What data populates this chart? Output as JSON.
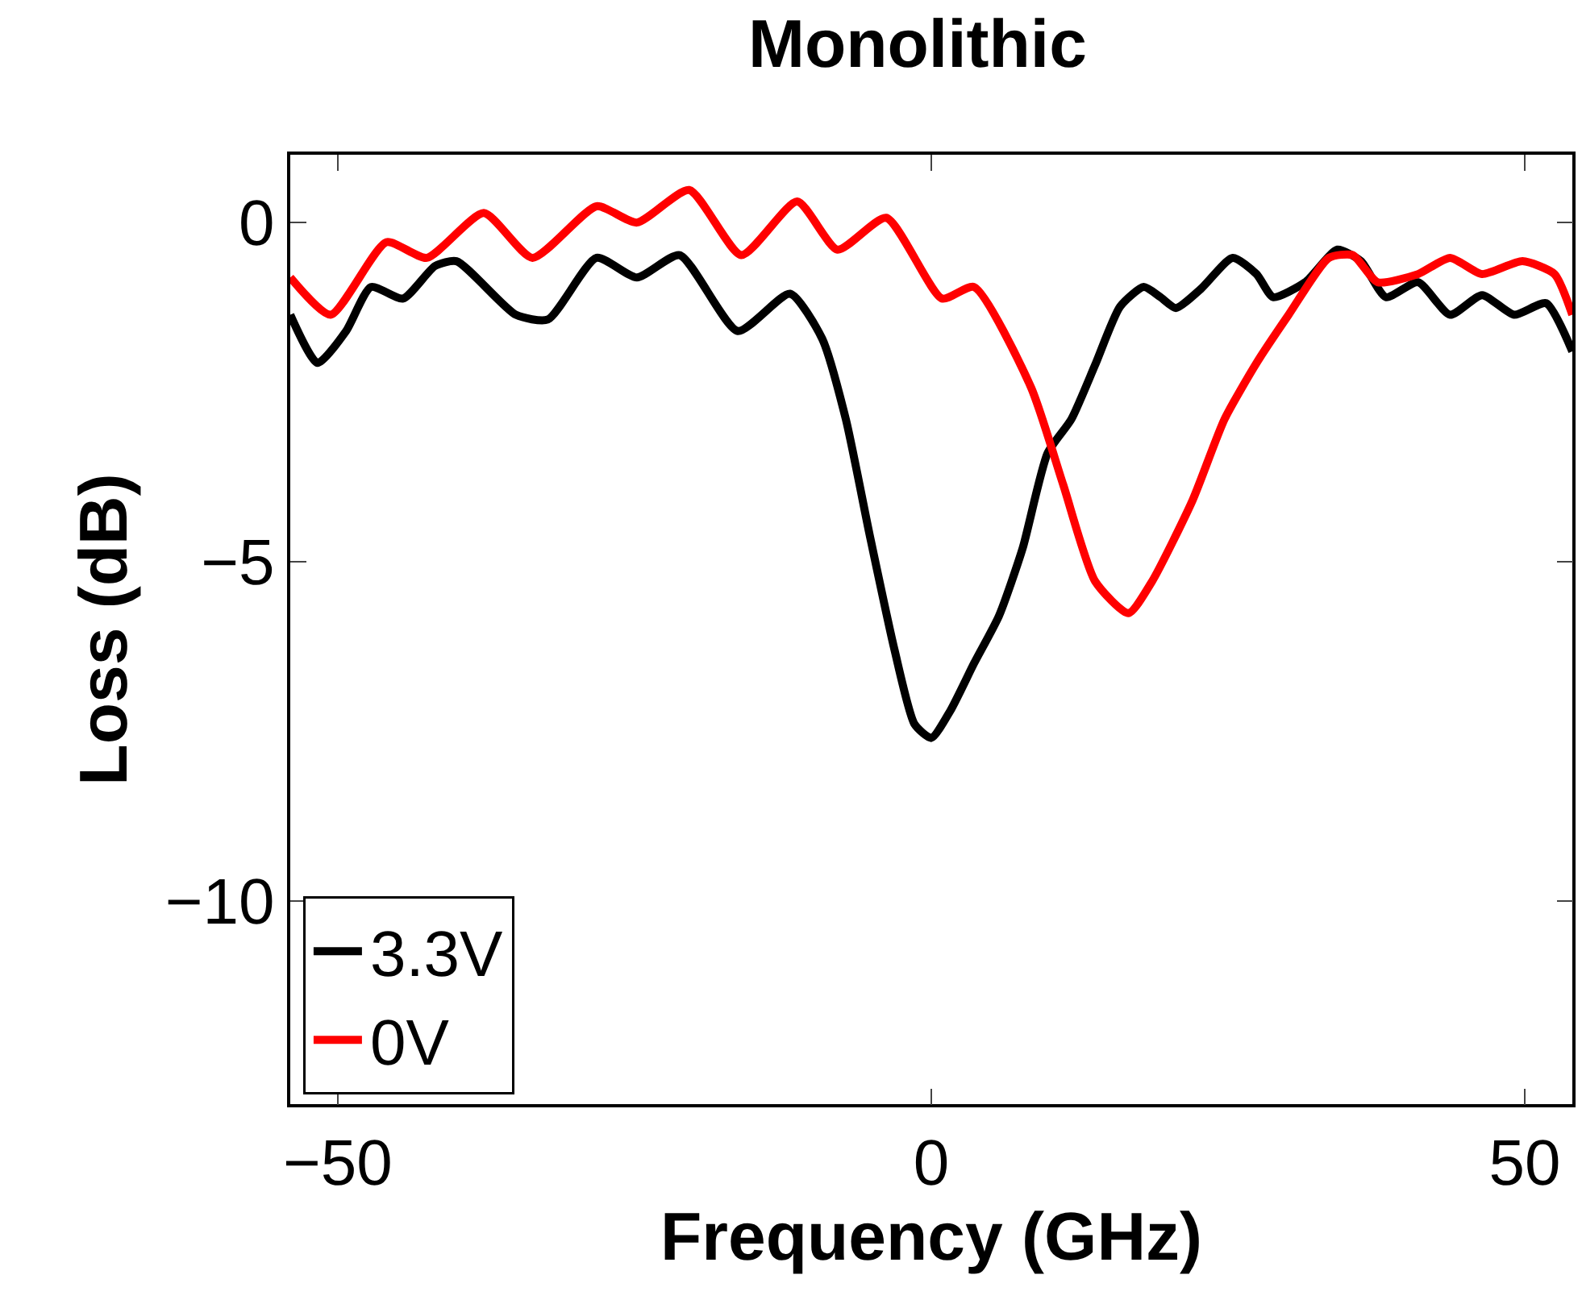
{
  "chart_data": {
    "type": "line",
    "title": "Monolithic",
    "xlabel": "Frequency (GHz)",
    "ylabel": "Loss (dB)",
    "xlim": [
      -54,
      54
    ],
    "xticks": [
      -50,
      0,
      50
    ],
    "ylim": [
      -13,
      1
    ],
    "yticks": [
      -10,
      -5,
      0
    ],
    "grid": false,
    "legend": "bottom left",
    "marker": "none",
    "line_style": "solid",
    "series": [
      {
        "name": "3.3V",
        "color": "#000000",
        "x": [
          -54,
          -51.7,
          -49.3,
          -47.2,
          -44.5,
          -41.8,
          -40,
          -35,
          -32.3,
          -28.2,
          -24.8,
          -21.2,
          -16.3,
          -11.9,
          -9.2,
          -7.2,
          -5.2,
          -3.1,
          -1.4,
          0,
          1.6,
          3.6,
          5.7,
          7.7,
          9.8,
          11.8,
          13.8,
          15.9,
          17.9,
          19.3,
          20.6,
          22.7,
          25.4,
          27.4,
          28.8,
          31.5,
          34.2,
          36.2,
          38.3,
          41,
          43.7,
          46.4,
          49.1,
          51.8,
          54
        ],
        "values": [
          -1.36,
          -2.07,
          -1.6,
          -0.95,
          -1.12,
          -0.64,
          -0.57,
          -1.36,
          -1.43,
          -0.52,
          -0.81,
          -0.48,
          -1.6,
          -1.05,
          -1.71,
          -2.9,
          -4.6,
          -6.3,
          -7.4,
          -7.6,
          -7.2,
          -6.5,
          -5.8,
          -4.8,
          -3.4,
          -2.9,
          -2.1,
          -1.24,
          -0.95,
          -1.1,
          -1.26,
          -0.98,
          -0.52,
          -0.76,
          -1.1,
          -0.88,
          -0.4,
          -0.57,
          -1.1,
          -0.88,
          -1.36,
          -1.07,
          -1.36,
          -1.19,
          -1.9
        ]
      },
      {
        "name": "0V",
        "color": "#ff0000",
        "x": [
          -54,
          -50.6,
          -45.9,
          -42.5,
          -37.7,
          -33.6,
          -28.2,
          -24.8,
          -20.4,
          -16,
          -11.3,
          -7.9,
          -3.8,
          0.9,
          3.6,
          8.4,
          11.1,
          13.8,
          16.6,
          18.6,
          22,
          24.7,
          27.4,
          30.1,
          33.5,
          35.5,
          37.6,
          41,
          43.7,
          46.4,
          49.8,
          52.5,
          54
        ],
        "values": [
          -0.81,
          -1.36,
          -0.29,
          -0.52,
          0.14,
          -0.52,
          0.24,
          0,
          0.48,
          -0.48,
          0.31,
          -0.4,
          0.07,
          -1.12,
          -0.95,
          -2.43,
          -3.86,
          -5.29,
          -5.76,
          -5.29,
          -4.1,
          -2.9,
          -2.07,
          -1.36,
          -0.52,
          -0.48,
          -0.88,
          -0.76,
          -0.52,
          -0.76,
          -0.57,
          -0.76,
          -1.36
        ]
      }
    ]
  }
}
